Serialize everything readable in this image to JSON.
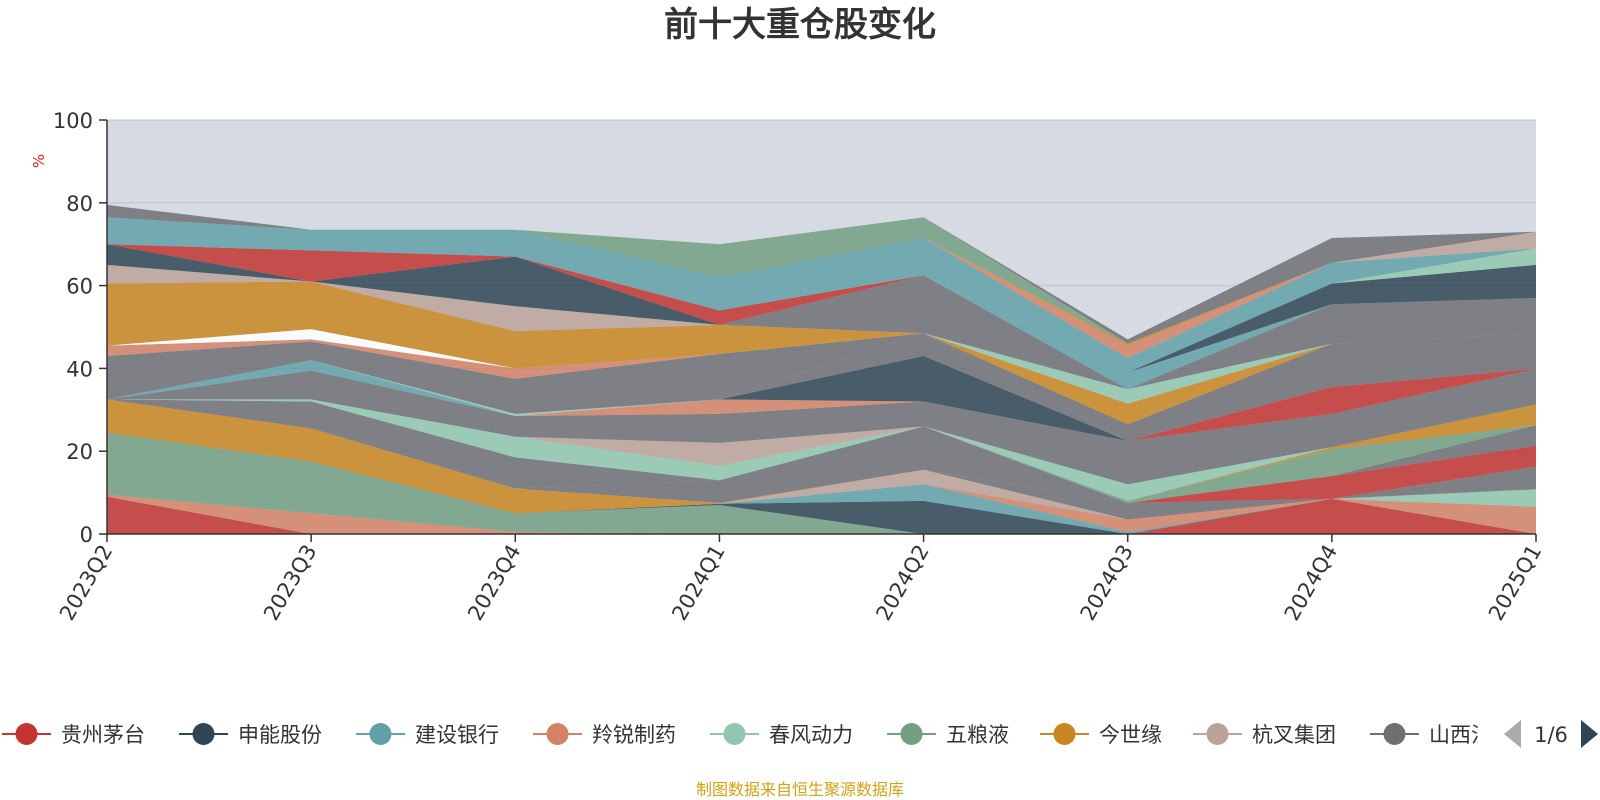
{
  "title": "前十大重仓股变化",
  "unit_label": "%",
  "source_note": "制图数据来自恒生聚源数据库",
  "legend_pager": "1/6",
  "legend": [
    {
      "name": "贵州茅台",
      "color": "#c23531"
    },
    {
      "name": "申能股份",
      "color": "#2f4554"
    },
    {
      "name": "建设银行",
      "color": "#61a0a8"
    },
    {
      "name": "羚锐制药",
      "color": "#d48265"
    },
    {
      "name": "春风动力",
      "color": "#91c7ae"
    },
    {
      "name": "五粮液",
      "color": "#749f83"
    },
    {
      "name": "今世缘",
      "color": "#ca8622"
    },
    {
      "name": "杭叉集团",
      "color": "#bda29a"
    },
    {
      "name": "山西汾酒",
      "color": "#6e7074"
    }
  ],
  "chart_data": {
    "type": "area",
    "stacked": true,
    "x": [
      "2023Q2",
      "2023Q3",
      "2023Q4",
      "2024Q1",
      "2024Q2",
      "2024Q3",
      "2024Q4",
      "2025Q1"
    ],
    "ylim": [
      0,
      100
    ],
    "yticks": [
      0,
      20,
      40,
      60,
      80,
      100
    ],
    "grid": true,
    "legend_position": "bottom",
    "layers": [
      {
        "color": "#c23531",
        "values": [
          9.0,
          0,
          0,
          0,
          0,
          0,
          8.5,
          0
        ]
      },
      {
        "color": "#d48265",
        "values": [
          0.5,
          5.0,
          0.5,
          0,
          0,
          0,
          0,
          6.6
        ]
      },
      {
        "color": "#749f83",
        "values": [
          15.0,
          12.5,
          4.5,
          7.0,
          0,
          0,
          0,
          0
        ]
      },
      {
        "color": "#2f4554",
        "values": [
          0,
          0,
          0,
          0.3,
          8.0,
          0,
          0,
          0
        ]
      },
      {
        "color": "#61a0a8",
        "values": [
          0,
          0,
          0,
          0,
          4.0,
          0.5,
          0,
          0
        ]
      },
      {
        "color": "#d48265",
        "values": [
          0,
          0,
          0,
          0,
          0,
          3.0,
          0,
          0
        ]
      },
      {
        "color": "#91c7ae",
        "values": [
          0,
          0,
          0,
          0,
          0,
          0,
          0,
          4.2
        ]
      },
      {
        "color": "#bda29a",
        "values": [
          0,
          0,
          0,
          0,
          3.5,
          0,
          0,
          0
        ]
      },
      {
        "color": "#6e7074",
        "values": [
          0,
          0,
          0,
          0,
          0,
          4.0,
          0,
          5.5
        ]
      },
      {
        "color": "#ca8622",
        "values": [
          8.0,
          8.0,
          6.0,
          0.2,
          0,
          0,
          0,
          0
        ]
      },
      {
        "color": "#c23531",
        "values": [
          0,
          0,
          0,
          0,
          0,
          0,
          5.5,
          5.0
        ]
      },
      {
        "color": "#6e7074",
        "values": [
          0,
          0,
          0,
          5.5,
          10.5,
          0,
          0,
          5.0
        ]
      },
      {
        "color": "#6e7074",
        "values": [
          0,
          6.5,
          7.5,
          0,
          0,
          0,
          0,
          0
        ]
      },
      {
        "color": "#749f83",
        "values": [
          0,
          0,
          0,
          0,
          0,
          0.5,
          6.5,
          0
        ]
      },
      {
        "color": "#ca8622",
        "values": [
          0,
          0,
          0,
          0,
          0,
          0,
          0.5,
          5.0
        ]
      },
      {
        "color": "#91c7ae",
        "values": [
          0,
          0.5,
          5.0,
          3.5,
          0,
          4.0,
          0,
          0
        ]
      },
      {
        "color": "#bda29a",
        "values": [
          0,
          0,
          0,
          5.5,
          0,
          0,
          0,
          0
        ]
      },
      {
        "color": "#6e7074",
        "values": [
          0,
          7.0,
          5.0,
          7.0,
          6.0,
          10.5,
          8.0,
          8.6
        ]
      },
      {
        "color": "#61a0a8",
        "values": [
          0,
          2.5,
          0,
          0,
          0,
          0,
          0,
          0
        ]
      },
      {
        "color": "#d48265",
        "values": [
          0,
          0,
          0,
          3.5,
          0,
          0,
          0,
          0
        ]
      },
      {
        "color": "#2f4554",
        "values": [
          0,
          0,
          0,
          0,
          11.0,
          0,
          0,
          0
        ]
      },
      {
        "color": "#c23531",
        "values": [
          0,
          0,
          0,
          0,
          0,
          0,
          6.5,
          0
        ]
      },
      {
        "color": "#91c7ae",
        "values": [
          0,
          0,
          0.5,
          0,
          0,
          0,
          0,
          0
        ]
      },
      {
        "color": "#6e7074",
        "values": [
          0,
          0,
          0,
          0,
          5.5,
          0,
          0,
          0
        ]
      },
      {
        "color": "#749f83",
        "values": [
          0,
          0,
          0,
          0,
          0,
          0,
          0,
          0
        ]
      },
      {
        "color": "#6e7074",
        "values": [
          10.5,
          4.5,
          8.5,
          11.0,
          0,
          4.0,
          10.5,
          8.6
        ]
      },
      {
        "color": "#d48265",
        "values": [
          2.5,
          0.5,
          2.5,
          0,
          0,
          0,
          0,
          0
        ]
      },
      {
        "color": "#bda29a",
        "values": [
          0,
          0,
          0,
          0,
          0,
          0,
          0,
          0
        ]
      },
      {
        "color": "#ffffff",
        "values": [
          0,
          2.5,
          0,
          0,
          0,
          0,
          0,
          0
        ]
      },
      {
        "color": "#ca8622",
        "values": [
          15.0,
          11.5,
          9.0,
          7.0,
          0,
          5.0,
          0,
          0
        ]
      },
      {
        "color": "#91c7ae",
        "values": [
          0,
          0,
          0,
          0,
          0,
          3.5,
          0,
          0
        ]
      },
      {
        "color": "#6e7074",
        "values": [
          0,
          0,
          0,
          0,
          14.0,
          0,
          9.5,
          8.5
        ]
      },
      {
        "color": "#bda29a",
        "values": [
          4.5,
          0,
          6.0,
          0,
          0,
          0,
          0,
          0
        ]
      },
      {
        "color": "#61a0a8",
        "values": [
          0,
          0,
          0,
          0,
          0,
          4.0,
          0,
          0
        ]
      },
      {
        "color": "#2f4554",
        "values": [
          5.0,
          0,
          12.0,
          0,
          0,
          0,
          5.0,
          8.0
        ]
      },
      {
        "color": "#c23531",
        "values": [
          0,
          7.5,
          0,
          3.5,
          0,
          0,
          0,
          0
        ]
      },
      {
        "color": "#91c7ae",
        "values": [
          0,
          0,
          0,
          0,
          0,
          0,
          0,
          4.0
        ]
      },
      {
        "color": "#61a0a8",
        "values": [
          6.5,
          5.0,
          6.5,
          8.0,
          9.0,
          3.5,
          5.0,
          0
        ]
      },
      {
        "color": "#d48265",
        "values": [
          0,
          0,
          0,
          0,
          0,
          3.0,
          0,
          0
        ]
      },
      {
        "color": "#ca8622",
        "values": [
          0,
          0,
          0,
          0,
          0,
          0.5,
          0,
          0
        ]
      },
      {
        "color": "#bda29a",
        "values": [
          0,
          0,
          0,
          0,
          0,
          0,
          0,
          4.0
        ]
      },
      {
        "color": "#749f83",
        "values": [
          0,
          0,
          0,
          8.0,
          5.0,
          0,
          0,
          0
        ]
      },
      {
        "color": "#6e7074",
        "values": [
          3.0,
          0,
          0,
          0,
          0,
          1.0,
          6.0,
          0
        ]
      }
    ]
  }
}
